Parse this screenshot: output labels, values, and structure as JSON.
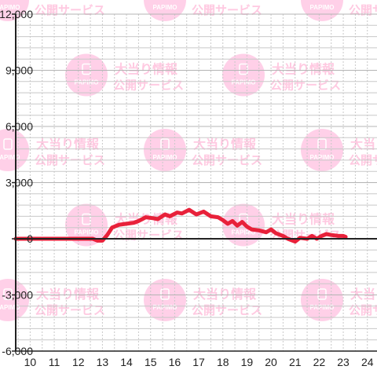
{
  "watermark": {
    "text_line1": "大当り情報",
    "text_line2": "公開サービス",
    "logo_text": "PAPIMO",
    "color": "#ffc8e4"
  },
  "colors": {
    "line": "#e8213a",
    "axis": "#222222",
    "grid_minor": "#c8c8c8",
    "grid_major": "#b4b4b4"
  },
  "chart_data": {
    "type": "line",
    "title": "",
    "xlabel": "",
    "ylabel": "",
    "xlim": [
      9.4,
      24.4
    ],
    "ylim": [
      -6000,
      12000
    ],
    "x_ticks": [
      10,
      11,
      12,
      13,
      14,
      15,
      16,
      17,
      18,
      19,
      20,
      21,
      22,
      23,
      24
    ],
    "y_ticks": [
      -6000,
      -3000,
      0,
      3000,
      6000,
      9000,
      12000
    ],
    "x_tick_labels": [
      "10",
      "11",
      "12",
      "13",
      "14",
      "15",
      "16",
      "17",
      "18",
      "19",
      "20",
      "21",
      "22",
      "23",
      "24"
    ],
    "y_tick_labels": [
      "-6,000",
      "-3,000",
      "0",
      "3,000",
      "6,000",
      "9,000",
      "12,000"
    ],
    "grid": true,
    "series": [
      {
        "x": [
          9.4,
          12.6,
          12.8,
          13.0,
          13.2,
          13.4,
          13.7,
          14.0,
          14.3,
          14.5,
          14.8,
          15.1,
          15.3,
          15.6,
          15.8,
          16.1,
          16.3,
          16.6,
          16.9,
          17.2,
          17.5,
          17.8,
          18.0,
          18.2,
          18.4,
          18.6,
          18.8,
          19.0,
          19.2,
          19.5,
          19.8,
          20.0,
          20.2,
          20.5,
          20.7,
          21.0,
          21.2,
          21.5,
          21.7,
          21.9,
          22.1,
          22.3,
          22.5,
          22.8,
          23.0,
          23.1
        ],
        "y": [
          0,
          0,
          -100,
          -100,
          200,
          600,
          750,
          800,
          850,
          950,
          1150,
          1100,
          1050,
          1300,
          1200,
          1400,
          1350,
          1550,
          1300,
          1450,
          1200,
          1150,
          1000,
          800,
          950,
          700,
          900,
          650,
          500,
          450,
          350,
          500,
          300,
          150,
          0,
          -150,
          50,
          0,
          150,
          0,
          150,
          250,
          200,
          150,
          150,
          100
        ]
      }
    ]
  }
}
